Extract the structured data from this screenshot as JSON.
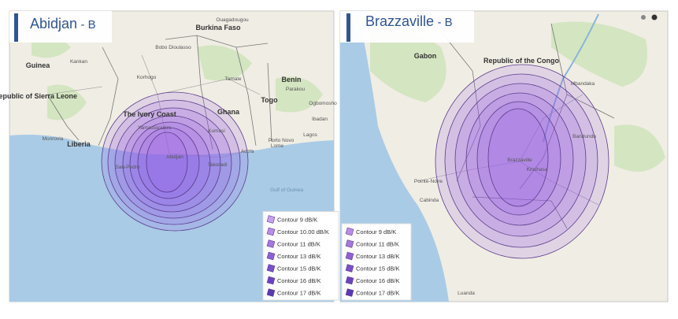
{
  "panels": [
    {
      "title": "Abidjan",
      "suffix": "- B",
      "places": [
        "Guinea",
        "Kankan",
        "Republic of Sierra Leone",
        "Liberia",
        "Monrovia",
        "Korhogo",
        "The Ivory Coast",
        "Yamoussoukro",
        "Abidjan",
        "San-Pedro",
        "Burkina Faso",
        "Bobo Dioulasso",
        "Ouagadougou",
        "Ghana",
        "Tamale",
        "Kumasi",
        "Accra",
        "Takoradi",
        "Togo",
        "Benin",
        "Parakou",
        "Porto Novo",
        "Lome",
        "Ogbomosho",
        "Ibadan",
        "Lagos",
        "Gulf of Guinea"
      ],
      "legend": [
        "Contour 9 dB/K",
        "Contour 10.00 dB/K",
        "Contour 11 dB/K",
        "Contour 13 dB/K",
        "Contour 15 dB/K",
        "Contour 16 dB/K",
        "Contour 17 dB/K"
      ]
    },
    {
      "title": "Brazzaville",
      "suffix": "- B",
      "places": [
        "Gabon",
        "Republic of the Congo",
        "Brazzaville",
        "Kinshasa",
        "Pointe-Noire",
        "Cabinda",
        "Luanda",
        "Bandundu",
        "Mbandaka"
      ],
      "legend": [
        "Contour 9 dB/K",
        "Contour 11 dB/K",
        "Contour 13 dB/K",
        "Contour 15 dB/K",
        "Contour 16 dB/K",
        "Contour 17 dB/K"
      ]
    }
  ]
}
